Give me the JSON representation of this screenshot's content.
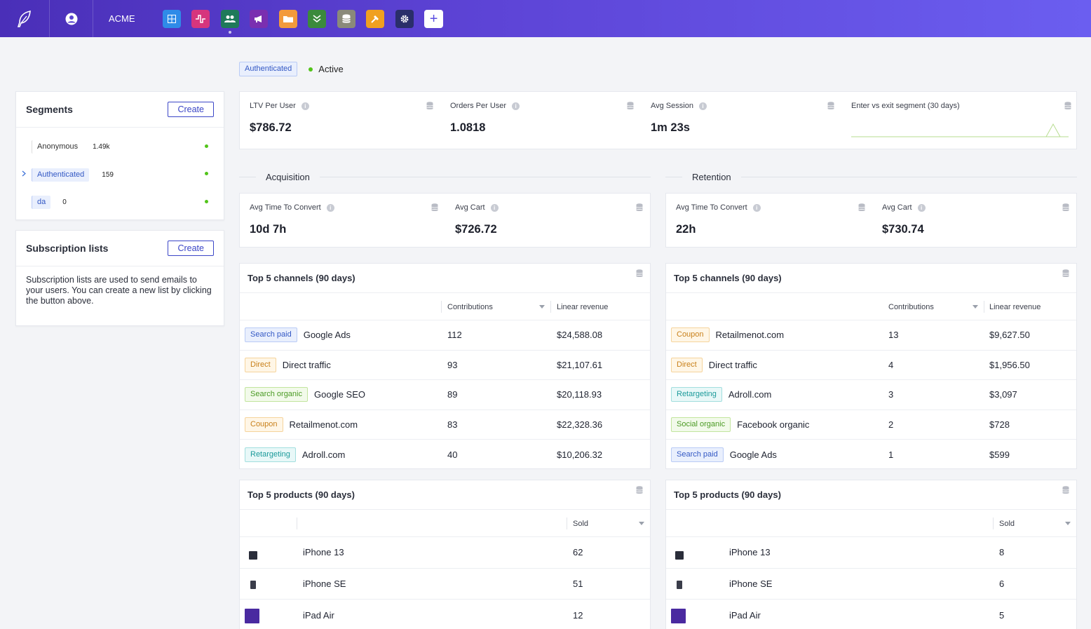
{
  "topbar": {
    "org": "ACME",
    "apps": [
      {
        "icon": "grid-icon",
        "color": "#2f8be8"
      },
      {
        "icon": "pulse-icon",
        "color": "#d6357d"
      },
      {
        "icon": "users-icon",
        "color": "#1f7a5a"
      },
      {
        "icon": "megaphone-icon",
        "color": "#7a2fb0"
      },
      {
        "icon": "folder-icon",
        "color": "#f39a3c"
      },
      {
        "icon": "chevrons-down-icon",
        "color": "#3b8a3b"
      },
      {
        "icon": "database-icon",
        "color": "#8a8a7a"
      },
      {
        "icon": "hammer-icon",
        "color": "#f0a020"
      },
      {
        "icon": "gear-icon",
        "color": "#2a2e6a"
      }
    ],
    "add_label": "+"
  },
  "status": {
    "segment_tag": "Authenticated",
    "state": "Active"
  },
  "segments": {
    "title": "Segments",
    "create_label": "Create",
    "items": [
      {
        "name": "Anonymous",
        "count": "1.49k",
        "style": "gray"
      },
      {
        "name": "Authenticated",
        "count": "159",
        "style": "blue"
      },
      {
        "name": "da",
        "count": "0",
        "style": "blue"
      }
    ]
  },
  "subscriptions": {
    "title": "Subscription lists",
    "create_label": "Create",
    "description": "Subscription lists are used to send emails to your users. You can create a new list by clicking the button above."
  },
  "kpis": [
    {
      "label": "LTV Per User",
      "value": "$786.72"
    },
    {
      "label": "Orders Per User",
      "value": "1.0818"
    },
    {
      "label": "Avg Session",
      "value": "1m 23s"
    },
    {
      "label": "Enter vs exit segment (30 days)",
      "value": ""
    }
  ],
  "acquisition": {
    "title": "Acquisition",
    "kpis": [
      {
        "label": "Avg Time To Convert",
        "value": "10d 7h"
      },
      {
        "label": "Avg Cart",
        "value": "$726.72"
      }
    ],
    "channels": {
      "title": "Top 5 channels (90 days)",
      "col_contrib": "Contributions",
      "col_revenue": "Linear revenue",
      "rows": [
        {
          "tag": "Search paid",
          "tag_style": "blue",
          "name": "Google Ads",
          "contrib": "112",
          "revenue": "$24,588.08"
        },
        {
          "tag": "Direct",
          "tag_style": "orange",
          "name": "Direct traffic",
          "contrib": "93",
          "revenue": "$21,107.61"
        },
        {
          "tag": "Search organic",
          "tag_style": "green",
          "name": "Google SEO",
          "contrib": "89",
          "revenue": "$20,118.93"
        },
        {
          "tag": "Coupon",
          "tag_style": "orange",
          "name": "Retailmenot.com",
          "contrib": "83",
          "revenue": "$22,328.36"
        },
        {
          "tag": "Retargeting",
          "tag_style": "cyan",
          "name": "Adroll.com",
          "contrib": "40",
          "revenue": "$10,206.32"
        }
      ]
    },
    "products": {
      "title": "Top 5 products (90 days)",
      "col_sold": "Sold",
      "rows": [
        {
          "name": "iPhone 13",
          "sold": "62",
          "thumb": "#2a2d3a"
        },
        {
          "name": "iPhone SE",
          "sold": "51",
          "thumb": "#3a3d4a"
        },
        {
          "name": "iPad Air",
          "sold": "12",
          "thumb": "#4a2aa0"
        }
      ]
    }
  },
  "retention": {
    "title": "Retention",
    "kpis": [
      {
        "label": "Avg Time To Convert",
        "value": "22h"
      },
      {
        "label": "Avg Cart",
        "value": "$730.74"
      }
    ],
    "channels": {
      "title": "Top 5 channels (90 days)",
      "col_contrib": "Contributions",
      "col_revenue": "Linear revenue",
      "rows": [
        {
          "tag": "Coupon",
          "tag_style": "orange",
          "name": "Retailmenot.com",
          "contrib": "13",
          "revenue": "$9,627.50"
        },
        {
          "tag": "Direct",
          "tag_style": "orange",
          "name": "Direct traffic",
          "contrib": "4",
          "revenue": "$1,956.50"
        },
        {
          "tag": "Retargeting",
          "tag_style": "cyan",
          "name": "Adroll.com",
          "contrib": "3",
          "revenue": "$3,097"
        },
        {
          "tag": "Social organic",
          "tag_style": "green",
          "name": "Facebook organic",
          "contrib": "2",
          "revenue": "$728"
        },
        {
          "tag": "Search paid",
          "tag_style": "blue",
          "name": "Google Ads",
          "contrib": "1",
          "revenue": "$599"
        }
      ]
    },
    "products": {
      "title": "Top 5 products (90 days)",
      "col_sold": "Sold",
      "rows": [
        {
          "name": "iPhone 13",
          "sold": "8",
          "thumb": "#2a2d3a"
        },
        {
          "name": "iPhone SE",
          "sold": "6",
          "thumb": "#3a3d4a"
        },
        {
          "name": "iPad Air",
          "sold": "5",
          "thumb": "#4a2aa0"
        }
      ]
    }
  }
}
